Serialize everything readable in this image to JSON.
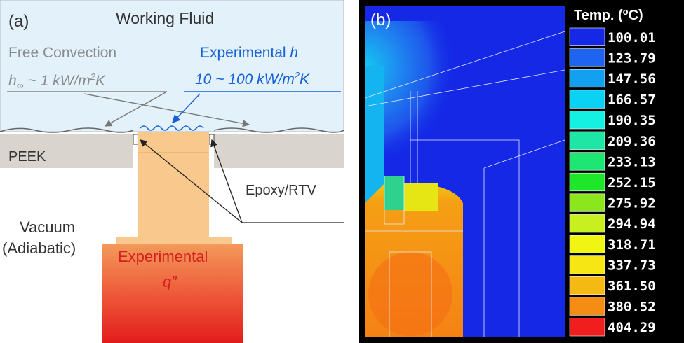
{
  "panel_a": {
    "label": "(a)",
    "fluid": "Working Fluid",
    "free_convection": "Free Convection",
    "h_inf": [
      "h",
      "∞",
      " ~ 1 kW/m",
      "2",
      "K"
    ],
    "experimental_h": [
      "Experimental ",
      "h"
    ],
    "h_range": [
      "10 ~ 100 kW/m",
      "2",
      "K"
    ],
    "peek": "PEEK",
    "epoxy": "Epoxy/RTV",
    "vacuum": "Vacuum",
    "adiabatic": "(Adiabatic)",
    "experimental_q": "Experimental",
    "q": "q″"
  },
  "panel_b": {
    "label": "(b)",
    "legend_title": [
      "Temp. (",
      "o",
      "C)"
    ],
    "legend": [
      {
        "label": "100.01",
        "color": "#1428e6"
      },
      {
        "label": "123.79",
        "color": "#1e64f0"
      },
      {
        "label": "147.56",
        "color": "#14a0f0"
      },
      {
        "label": "166.57",
        "color": "#0ad2f5"
      },
      {
        "label": "190.35",
        "color": "#14f0e1"
      },
      {
        "label": "209.36",
        "color": "#1ee6a5"
      },
      {
        "label": "233.13",
        "color": "#1ee673"
      },
      {
        "label": "252.15",
        "color": "#1ee628"
      },
      {
        "label": "275.92",
        "color": "#8ce61e"
      },
      {
        "label": "294.94",
        "color": "#c8f01e"
      },
      {
        "label": "318.71",
        "color": "#f0f514"
      },
      {
        "label": "337.73",
        "color": "#f5e614"
      },
      {
        "label": "361.50",
        "color": "#f5b914"
      },
      {
        "label": "380.52",
        "color": "#f58c14"
      },
      {
        "label": "404.29",
        "color": "#f01e1e"
      }
    ]
  }
}
